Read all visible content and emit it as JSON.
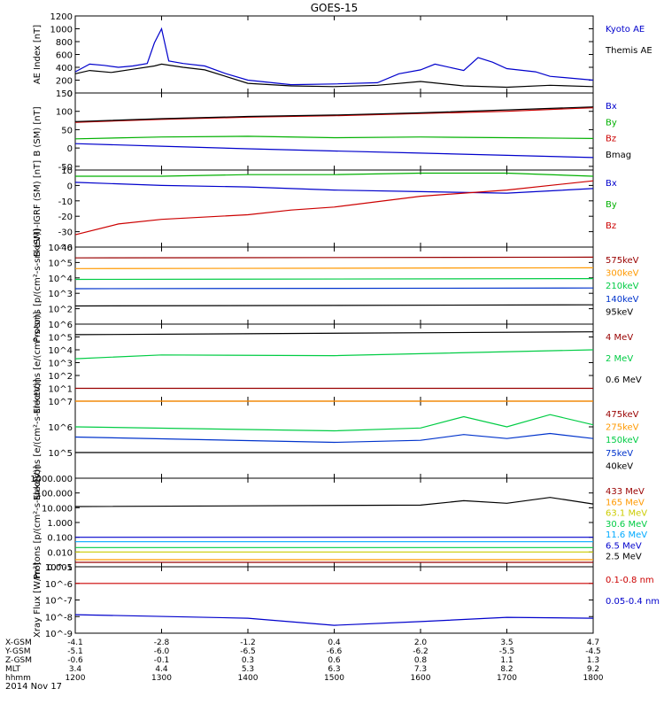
{
  "title": "GOES-15",
  "date_label": "2014 Nov 17",
  "colors": {
    "kyoto": "#0000cc",
    "themis": "#000000",
    "bx": "#0000cc",
    "by": "#00b000",
    "bz": "#cc0000",
    "bmag": "#000000",
    "ch575": "#990000",
    "ch300": "#ff9900",
    "ch210": "#00cc44",
    "ch140": "#0033cc",
    "ch95": "#000000",
    "e4": "#990000",
    "e2": "#00cc44",
    "e06": "#000000",
    "e475": "#990000",
    "e275": "#ff9900",
    "e150": "#00cc44",
    "e75": "#0033cc",
    "e40": "#000000",
    "p433": "#990000",
    "p165": "#ff9900",
    "p63": "#cccc00",
    "p30": "#00cc44",
    "p11": "#00aaff",
    "p65": "#0000cc",
    "p25": "#000000",
    "xlong": "#cc0000",
    "xshort": "#0000cc"
  },
  "time_axis": {
    "tick_labels": [
      "1200",
      "1300",
      "1400",
      "1500",
      "1600",
      "1700",
      "1800"
    ],
    "rows": [
      {
        "label": "X-GSM",
        "values": [
          "-4.1",
          "-2.8",
          "-1.2",
          "0.4",
          "2.0",
          "3.5",
          "4.7"
        ]
      },
      {
        "label": "Y-GSM",
        "values": [
          "-5.1",
          "-6.0",
          "-6.5",
          "-6.6",
          "-6.2",
          "-5.5",
          "-4.5"
        ]
      },
      {
        "label": "Z-GSM",
        "values": [
          "-0.6",
          "-0.1",
          "0.3",
          "0.6",
          "0.8",
          "1.1",
          "1.3"
        ]
      },
      {
        "label": "MLT",
        "values": [
          "3.4",
          "4.4",
          "5.3",
          "6.3",
          "7.3",
          "8.2",
          "9.2"
        ]
      },
      {
        "label": "hhmm",
        "values": [
          "1200",
          "1300",
          "1400",
          "1500",
          "1600",
          "1700",
          "1800"
        ]
      }
    ]
  },
  "chart_data": [
    {
      "type": "line",
      "ylabel": "AE Index [nT]",
      "ylim": [
        0,
        1200
      ],
      "yscale": "linear",
      "y_ticks": [
        "0",
        "200",
        "400",
        "600",
        "800",
        "1000",
        "1200"
      ],
      "series": [
        {
          "name": "Kyoto AE",
          "color_key": "kyoto",
          "x": [
            1200,
            1210,
            1220,
            1230,
            1240,
            1250,
            1255,
            1300,
            1305,
            1315,
            1330,
            1345,
            1400,
            1430,
            1500,
            1530,
            1545,
            1600,
            1610,
            1630,
            1640,
            1650,
            1700,
            1720,
            1730,
            1800
          ],
          "y": [
            330,
            450,
            430,
            400,
            420,
            460,
            780,
            1000,
            500,
            460,
            420,
            300,
            200,
            130,
            140,
            160,
            300,
            360,
            450,
            350,
            550,
            480,
            380,
            330,
            260,
            200
          ]
        },
        {
          "name": "Themis AE",
          "color_key": "themis",
          "x": [
            1200,
            1210,
            1225,
            1240,
            1255,
            1300,
            1315,
            1330,
            1400,
            1430,
            1500,
            1530,
            1600,
            1630,
            1700,
            1730,
            1800
          ],
          "y": [
            300,
            350,
            320,
            370,
            420,
            450,
            400,
            360,
            150,
            110,
            100,
            120,
            180,
            110,
            90,
            120,
            100
          ]
        }
      ]
    },
    {
      "type": "line",
      "ylabel": "B (SM) [nT]",
      "ylim": [
        -60,
        150
      ],
      "yscale": "linear",
      "y_ticks": [
        "-50",
        "0",
        "50",
        "100",
        "150"
      ],
      "series": [
        {
          "name": "Bx",
          "color_key": "bx",
          "x": [
            1200,
            1300,
            1400,
            1500,
            1600,
            1700,
            1800
          ],
          "y": [
            12,
            5,
            -2,
            -8,
            -14,
            -20,
            -26
          ]
        },
        {
          "name": "By",
          "color_key": "by",
          "x": [
            1200,
            1300,
            1400,
            1500,
            1600,
            1700,
            1800
          ],
          "y": [
            25,
            30,
            32,
            28,
            30,
            28,
            26
          ]
        },
        {
          "name": "Bz",
          "color_key": "bz",
          "x": [
            1200,
            1300,
            1400,
            1500,
            1600,
            1700,
            1800
          ],
          "y": [
            70,
            78,
            84,
            88,
            94,
            100,
            110
          ]
        },
        {
          "name": "Bmag",
          "color_key": "bmag",
          "x": [
            1200,
            1300,
            1400,
            1500,
            1600,
            1700,
            1800
          ],
          "y": [
            72,
            80,
            86,
            90,
            96,
            104,
            112
          ]
        }
      ]
    },
    {
      "type": "line",
      "ylabel": "B (SM)-IGRF (SM) [nT]",
      "ylim": [
        -40,
        10
      ],
      "yscale": "linear",
      "y_ticks": [
        "-40",
        "-30",
        "-20",
        "-10",
        "0",
        "10"
      ],
      "series": [
        {
          "name": "Bx",
          "color_key": "bx",
          "x": [
            1200,
            1300,
            1400,
            1500,
            1600,
            1700,
            1800
          ],
          "y": [
            2,
            0,
            -1,
            -3,
            -4,
            -5,
            -2
          ]
        },
        {
          "name": "By",
          "color_key": "by",
          "x": [
            1200,
            1300,
            1400,
            1500,
            1600,
            1700,
            1800
          ],
          "y": [
            6,
            6,
            7,
            7,
            8,
            8,
            6
          ]
        },
        {
          "name": "Bz",
          "color_key": "bz",
          "x": [
            1200,
            1230,
            1300,
            1400,
            1430,
            1500,
            1600,
            1700,
            1800
          ],
          "y": [
            -32,
            -25,
            -22,
            -19,
            -16,
            -14,
            -7,
            -3,
            3
          ]
        }
      ]
    },
    {
      "type": "line",
      "ylabel": "Protons [p/(cm²-s-sr-keV)]",
      "yscale": "log",
      "ylim": [
        10.0,
        1000000.0
      ],
      "y_ticks": [
        "10^2",
        "10^3",
        "10^4",
        "10^5",
        "10^6"
      ],
      "series": [
        {
          "name": "575keV",
          "color_key": "ch575",
          "x": [
            1200,
            1800
          ],
          "y": [
            200000,
            220000
          ]
        },
        {
          "name": "300keV",
          "color_key": "ch300",
          "x": [
            1200,
            1800
          ],
          "y": [
            40000,
            45000
          ]
        },
        {
          "name": "210keV",
          "color_key": "ch210",
          "x": [
            1200,
            1800
          ],
          "y": [
            8000,
            9000
          ]
        },
        {
          "name": "140keV",
          "color_key": "ch140",
          "x": [
            1200,
            1800
          ],
          "y": [
            2000,
            2200
          ]
        },
        {
          "name": "95keV",
          "color_key": "ch95",
          "x": [
            1200,
            1800
          ],
          "y": [
            150,
            180
          ]
        }
      ]
    },
    {
      "type": "line",
      "ylabel": "Electrons [e/(cm²-s-sr)]",
      "yscale": "log",
      "ylim": [
        1.0,
        1000000.0
      ],
      "y_ticks": [
        "10^1",
        "10^2",
        "10^3",
        "10^4",
        "10^5",
        "10^6"
      ],
      "series": [
        {
          "name": "4 MeV",
          "color_key": "e4",
          "x": [
            1200,
            1800
          ],
          "y": [
            10,
            10
          ]
        },
        {
          "name": "2 MeV",
          "color_key": "e2",
          "x": [
            1200,
            1300,
            1500,
            1800
          ],
          "y": [
            2000,
            4000,
            3500,
            10000
          ]
        },
        {
          "name": "0.6 MeV",
          "color_key": "e06",
          "x": [
            1200,
            1800
          ],
          "y": [
            150000,
            250000
          ]
        }
      ]
    },
    {
      "type": "line",
      "ylabel": "Electrons [e/(cm²-s-sr-keV)]",
      "yscale": "log",
      "ylim": [
        10000.0,
        10000000.0
      ],
      "y_ticks": [
        "10^5",
        "10^6",
        "10^7"
      ],
      "series": [
        {
          "name": "475keV",
          "color_key": "e475",
          "x": [
            1200,
            1800
          ],
          "y": [
            10000000.0,
            10000000.0
          ]
        },
        {
          "name": "275keV",
          "color_key": "e275",
          "x": [
            1200,
            1800
          ],
          "y": [
            10000000.0,
            10000000.0
          ]
        },
        {
          "name": "150keV",
          "color_key": "e150",
          "x": [
            1200,
            1500,
            1600,
            1630,
            1700,
            1730,
            1800
          ],
          "y": [
            1000000,
            700000,
            900000,
            2500000,
            1000000,
            3000000,
            1200000
          ]
        },
        {
          "name": "75keV",
          "color_key": "e75",
          "x": [
            1200,
            1500,
            1600,
            1630,
            1700,
            1730,
            1800
          ],
          "y": [
            400000,
            250000,
            300000,
            500000,
            350000,
            550000,
            350000
          ]
        },
        {
          "name": "40keV",
          "color_key": "e40",
          "x": [
            1200,
            1800
          ],
          "y": [
            100000,
            100000
          ]
        }
      ]
    },
    {
      "type": "line",
      "ylabel": "Protons [p/(cm²-s-sr-keV)]",
      "yscale": "log",
      "ylim": [
        0.001,
        1000
      ],
      "y_ticks": [
        "0.001",
        "0.010",
        "0.100",
        "1.000",
        "10.000",
        "100.000",
        "1000.000"
      ],
      "series": [
        {
          "name": "433 MeV",
          "color_key": "p433",
          "x": [
            1200,
            1800
          ],
          "y": [
            0.002,
            0.002
          ]
        },
        {
          "name": "165 MeV",
          "color_key": "p165",
          "x": [
            1200,
            1800
          ],
          "y": [
            0.003,
            0.003
          ]
        },
        {
          "name": "63.1 MeV",
          "color_key": "p63",
          "x": [
            1200,
            1800
          ],
          "y": [
            0.01,
            0.01
          ]
        },
        {
          "name": "30.6 MeV",
          "color_key": "p30",
          "x": [
            1200,
            1800
          ],
          "y": [
            0.02,
            0.02
          ]
        },
        {
          "name": "11.6 MeV",
          "color_key": "p11",
          "x": [
            1200,
            1800
          ],
          "y": [
            0.05,
            0.05
          ]
        },
        {
          "name": "6.5 MeV",
          "color_key": "p65",
          "x": [
            1200,
            1800
          ],
          "y": [
            0.1,
            0.1
          ]
        },
        {
          "name": "2.5 MeV",
          "color_key": "p25",
          "x": [
            1200,
            1600,
            1630,
            1700,
            1730,
            1800
          ],
          "y": [
            12,
            15,
            30,
            20,
            50,
            18
          ]
        }
      ]
    },
    {
      "type": "line",
      "ylabel": "Xray Flux [W/m²]",
      "yscale": "log",
      "ylim": [
        1e-09,
        1e-05
      ],
      "y_ticks": [
        "10^-9",
        "10^-8",
        "10^-7",
        "10^-6",
        "10^-5"
      ],
      "series": [
        {
          "name": "0.1-0.8 nm",
          "color_key": "xlong",
          "x": [
            1200,
            1800
          ],
          "y": [
            1e-06,
            1e-06
          ]
        },
        {
          "name": "0.05-0.4 nm",
          "color_key": "xshort",
          "x": [
            1200,
            1400,
            1500,
            1600,
            1700,
            1800
          ],
          "y": [
            1.3e-08,
            8e-09,
            3e-09,
            5e-09,
            9e-09,
            8e-09
          ]
        }
      ]
    }
  ]
}
